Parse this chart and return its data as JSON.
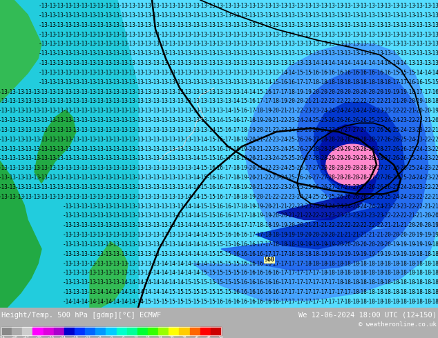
{
  "title_left": "Height/Temp. 500 hPa [gdmp][°C] ECMWF",
  "title_right": "We 12-06-2024 18:00 UTC (12+150)",
  "copyright": "© weatheronline.co.uk",
  "colorbar_ticks": [
    "-54",
    "-48",
    "-42",
    "-38",
    "-30",
    "-24",
    "-18",
    "-12",
    "-8",
    "0",
    "8",
    "12",
    "18",
    "24",
    "30",
    "38",
    "42",
    "48",
    "54"
  ],
  "colorbar_colors": [
    "#888888",
    "#aaaaaa",
    "#cccccc",
    "#ff00ff",
    "#dd00dd",
    "#aa00cc",
    "#0000cc",
    "#0033ff",
    "#0066ff",
    "#0099ff",
    "#00ccff",
    "#00ffcc",
    "#00ff99",
    "#00ff33",
    "#33ff00",
    "#99ff00",
    "#ffff00",
    "#ffcc00",
    "#ff6600",
    "#ff0000",
    "#cc0000"
  ],
  "ocean_color": "#55ddff",
  "left_cyan_color": "#22ccdd",
  "land_green1": "#22aa44",
  "land_green2": "#33bb55",
  "blue_outer": "#4499ff",
  "blue_mid": "#2266ee",
  "blue_dark": "#0033cc",
  "blue_darkest": "#0011aa",
  "pink_center": "#ff88cc",
  "bottom_bar_color": "#000000",
  "fig_bg": "#b0b0b0"
}
